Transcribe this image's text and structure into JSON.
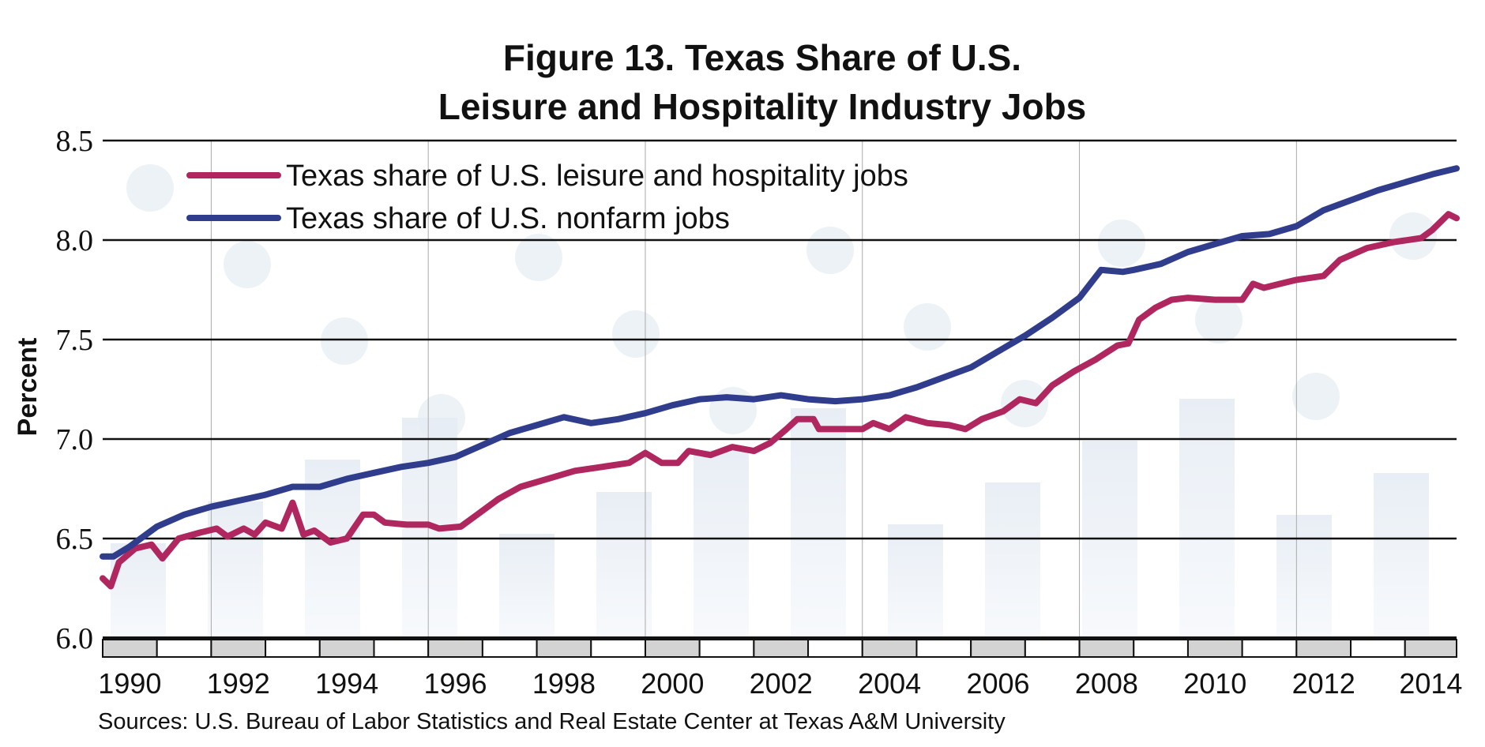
{
  "chart_data": {
    "type": "line",
    "title": [
      "Figure 13. Texas Share of U.S.",
      "Leisure and Hospitality Industry Jobs"
    ],
    "ylabel": "Percent",
    "xlabel": "",
    "ylim": [
      6.0,
      8.5
    ],
    "xlim": [
      1990,
      2014.95
    ],
    "yticks": [
      "6.0",
      "6.5",
      "7.0",
      "7.5",
      "8.0",
      "8.5"
    ],
    "xticks": [
      "1990",
      "1992",
      "1994",
      "1996",
      "1998",
      "2000",
      "2002",
      "2004",
      "2006",
      "2008",
      "2010",
      "2012",
      "2014"
    ],
    "grid": "horizontal lines at each tick; faint vertical lines every 4 years",
    "legend": "top-left",
    "source": "Sources: U.S. Bureau of Labor Statistics and Real Estate Center at Texas A&M University",
    "series": [
      {
        "name": "Texas share of U.S. leisure and hospitality jobs",
        "color": "#b0275f",
        "x": [
          1990.0,
          1990.15,
          1990.3,
          1990.6,
          1990.9,
          1991.1,
          1991.4,
          1991.8,
          1992.1,
          1992.3,
          1992.6,
          1992.8,
          1993.0,
          1993.3,
          1993.5,
          1993.7,
          1993.9,
          1994.2,
          1994.5,
          1994.8,
          1995.0,
          1995.2,
          1995.6,
          1996.0,
          1996.2,
          1996.6,
          1996.9,
          1997.3,
          1997.7,
          1998.2,
          1998.7,
          1999.2,
          1999.7,
          2000.0,
          2000.3,
          2000.6,
          2000.8,
          2001.2,
          2001.6,
          2002.0,
          2002.3,
          2002.6,
          2002.8,
          2003.1,
          2003.2,
          2003.6,
          2004.0,
          2004.2,
          2004.5,
          2004.8,
          2005.2,
          2005.6,
          2005.9,
          2006.2,
          2006.6,
          2006.9,
          2007.2,
          2007.5,
          2007.9,
          2008.3,
          2008.7,
          2008.9,
          2009.1,
          2009.4,
          2009.7,
          2010.0,
          2010.5,
          2011.0,
          2011.2,
          2011.4,
          2011.7,
          2012.0,
          2012.5,
          2012.8,
          2013.3,
          2013.8,
          2014.3,
          2014.5,
          2014.8,
          2014.95
        ],
        "values": [
          6.3,
          6.26,
          6.38,
          6.45,
          6.47,
          6.4,
          6.5,
          6.53,
          6.55,
          6.51,
          6.55,
          6.52,
          6.58,
          6.55,
          6.68,
          6.52,
          6.54,
          6.48,
          6.5,
          6.62,
          6.62,
          6.58,
          6.57,
          6.57,
          6.55,
          6.56,
          6.62,
          6.7,
          6.76,
          6.8,
          6.84,
          6.86,
          6.88,
          6.93,
          6.88,
          6.88,
          6.94,
          6.92,
          6.96,
          6.94,
          6.98,
          7.05,
          7.1,
          7.1,
          7.05,
          7.05,
          7.05,
          7.08,
          7.05,
          7.11,
          7.08,
          7.07,
          7.05,
          7.1,
          7.14,
          7.2,
          7.18,
          7.27,
          7.34,
          7.4,
          7.47,
          7.48,
          7.6,
          7.66,
          7.7,
          7.71,
          7.7,
          7.7,
          7.78,
          7.76,
          7.78,
          7.8,
          7.82,
          7.9,
          7.96,
          7.99,
          8.01,
          8.05,
          8.13,
          8.11
        ]
      },
      {
        "name": "Texas share of U.S. nonfarm jobs",
        "color": "#2f3d8c",
        "x": [
          1990.0,
          1990.2,
          1990.5,
          1991.0,
          1991.5,
          1992.0,
          1992.5,
          1993.0,
          1993.5,
          1994.0,
          1994.5,
          1995.0,
          1995.5,
          1996.0,
          1996.5,
          1997.0,
          1997.5,
          1998.0,
          1998.5,
          1999.0,
          1999.5,
          2000.0,
          2000.5,
          2001.0,
          2001.5,
          2002.0,
          2002.5,
          2003.0,
          2003.5,
          2004.0,
          2004.5,
          2005.0,
          2005.5,
          2006.0,
          2006.5,
          2007.0,
          2007.5,
          2008.0,
          2008.4,
          2008.8,
          2009.0,
          2009.5,
          2010.0,
          2010.5,
          2011.0,
          2011.5,
          2012.0,
          2012.5,
          2013.0,
          2013.5,
          2014.0,
          2014.5,
          2014.95
        ],
        "values": [
          6.41,
          6.41,
          6.46,
          6.56,
          6.62,
          6.66,
          6.69,
          6.72,
          6.76,
          6.76,
          6.8,
          6.83,
          6.86,
          6.88,
          6.91,
          6.97,
          7.03,
          7.07,
          7.11,
          7.08,
          7.1,
          7.13,
          7.17,
          7.2,
          7.21,
          7.2,
          7.22,
          7.2,
          7.19,
          7.2,
          7.22,
          7.26,
          7.31,
          7.36,
          7.44,
          7.52,
          7.61,
          7.71,
          7.85,
          7.84,
          7.85,
          7.88,
          7.94,
          7.98,
          8.02,
          8.03,
          8.07,
          8.15,
          8.2,
          8.25,
          8.29,
          8.33,
          8.36
        ]
      }
    ]
  }
}
